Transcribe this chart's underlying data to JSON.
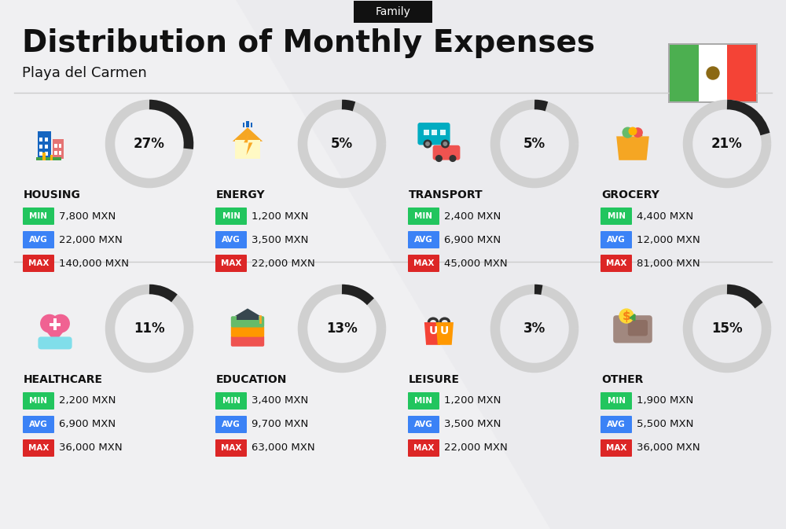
{
  "title": "Distribution of Monthly Expenses",
  "subtitle": "Playa del Carmen",
  "tag": "Family",
  "bg_color": "#f0f0f2",
  "categories": [
    {
      "name": "HOUSING",
      "pct": 27,
      "min": "7,800 MXN",
      "avg": "22,000 MXN",
      "max": "140,000 MXN",
      "row": 0,
      "col": 0
    },
    {
      "name": "ENERGY",
      "pct": 5,
      "min": "1,200 MXN",
      "avg": "3,500 MXN",
      "max": "22,000 MXN",
      "row": 0,
      "col": 1
    },
    {
      "name": "TRANSPORT",
      "pct": 5,
      "min": "2,400 MXN",
      "avg": "6,900 MXN",
      "max": "45,000 MXN",
      "row": 0,
      "col": 2
    },
    {
      "name": "GROCERY",
      "pct": 21,
      "min": "4,400 MXN",
      "avg": "12,000 MXN",
      "max": "81,000 MXN",
      "row": 0,
      "col": 3
    },
    {
      "name": "HEALTHCARE",
      "pct": 11,
      "min": "2,200 MXN",
      "avg": "6,900 MXN",
      "max": "36,000 MXN",
      "row": 1,
      "col": 0
    },
    {
      "name": "EDUCATION",
      "pct": 13,
      "min": "3,400 MXN",
      "avg": "9,700 MXN",
      "max": "63,000 MXN",
      "row": 1,
      "col": 1
    },
    {
      "name": "LEISURE",
      "pct": 3,
      "min": "1,200 MXN",
      "avg": "3,500 MXN",
      "max": "22,000 MXN",
      "row": 1,
      "col": 2
    },
    {
      "name": "OTHER",
      "pct": 15,
      "min": "1,900 MXN",
      "avg": "5,500 MXN",
      "max": "36,000 MXN",
      "row": 1,
      "col": 3
    }
  ],
  "color_min": "#22c55e",
  "color_avg": "#3b82f6",
  "color_max": "#dc2626",
  "arc_dark": "#222222",
  "arc_light": "#d0d0d0",
  "text_dark": "#111111",
  "tag_bg": "#111111",
  "flag_green": "#4caf50",
  "flag_white": "#ffffff",
  "flag_red": "#f44336"
}
